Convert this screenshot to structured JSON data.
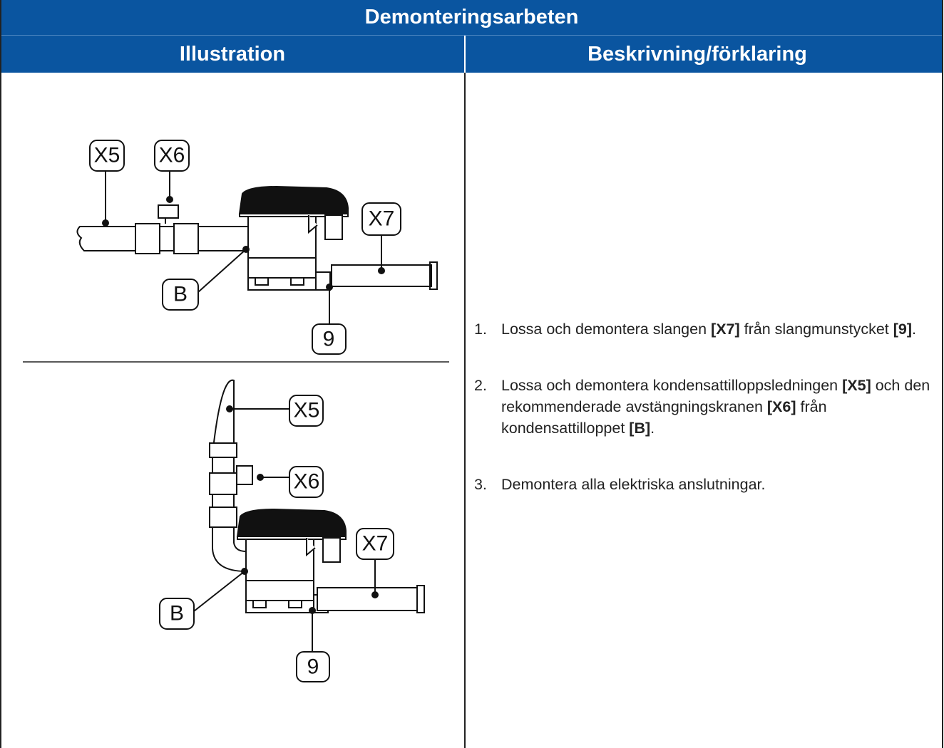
{
  "table": {
    "title": "Demonteringsarbeten",
    "headers": [
      "Illustration",
      "Beskrivning/förklaring"
    ],
    "figures": [
      {
        "labels": [
          "X5",
          "X6",
          "X7",
          "B",
          "9"
        ]
      },
      {
        "labels": [
          "X5",
          "X6",
          "X7",
          "B",
          "9"
        ]
      }
    ],
    "steps": [
      {
        "number": "1.",
        "parts": [
          {
            "text": "Lossa och demontera slangen "
          },
          {
            "bold": "[X7]"
          },
          {
            "text": " från slangmunstycket "
          },
          {
            "bold": "[9]"
          },
          {
            "text": "."
          }
        ]
      },
      {
        "number": "2.",
        "parts": [
          {
            "text": "Lossa och demontera kondensattilloppsledningen "
          },
          {
            "bold": "[X5]"
          },
          {
            "text": " och den rekommenderade avstängningskranen "
          },
          {
            "bold": "[X6]"
          },
          {
            "text": " från kondensattilloppet "
          },
          {
            "bold": "[B]"
          },
          {
            "text": "."
          }
        ]
      },
      {
        "number": "3.",
        "parts": [
          {
            "text": "Demontera alla elektriska anslutningar."
          }
        ]
      }
    ]
  }
}
